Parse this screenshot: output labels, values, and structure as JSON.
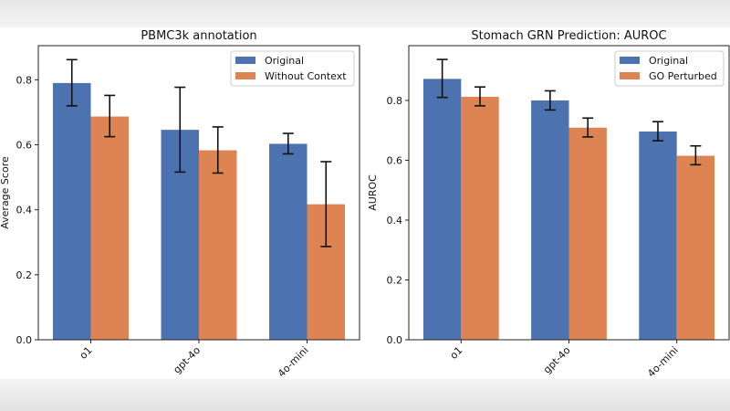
{
  "chart_data": [
    {
      "type": "bar",
      "title": "PBMC3k annotation",
      "xlabel": "",
      "ylabel": "Average Score",
      "ylim": [
        0,
        0.905
      ],
      "yticks": [
        "0.0",
        "0.2",
        "0.4",
        "0.6",
        "0.8"
      ],
      "categories": [
        "o1",
        "gpt-4o",
        "4o-mini"
      ],
      "legend_position": "top-right",
      "grid": false,
      "series": [
        {
          "name": "Original",
          "color": "#4c72b0",
          "values": [
            0.79,
            0.646,
            0.603
          ],
          "err_low": [
            0.72,
            0.516,
            0.572
          ],
          "err_high": [
            0.862,
            0.777,
            0.635
          ]
        },
        {
          "name": "Without Context",
          "color": "#dd8452",
          "values": [
            0.687,
            0.583,
            0.417
          ],
          "err_low": [
            0.625,
            0.513,
            0.287
          ],
          "err_high": [
            0.752,
            0.655,
            0.548
          ]
        }
      ]
    },
    {
      "type": "bar",
      "title": "Stomach GRN Prediction: AUROC",
      "xlabel": "",
      "ylabel": "AUROC",
      "ylim": [
        0,
        0.983
      ],
      "yticks": [
        "0.0",
        "0.2",
        "0.4",
        "0.6",
        "0.8"
      ],
      "categories": [
        "o1",
        "gpt-4o",
        "4o-mini"
      ],
      "legend_position": "top-right",
      "grid": false,
      "series": [
        {
          "name": "Original",
          "color": "#4c72b0",
          "values": [
            0.872,
            0.8,
            0.696
          ],
          "err_low": [
            0.81,
            0.768,
            0.665
          ],
          "err_high": [
            0.937,
            0.832,
            0.729
          ]
        },
        {
          "name": "GO Perturbed",
          "color": "#dd8452",
          "values": [
            0.812,
            0.709,
            0.615
          ],
          "err_low": [
            0.782,
            0.678,
            0.585
          ],
          "err_high": [
            0.845,
            0.741,
            0.648
          ]
        }
      ]
    }
  ]
}
